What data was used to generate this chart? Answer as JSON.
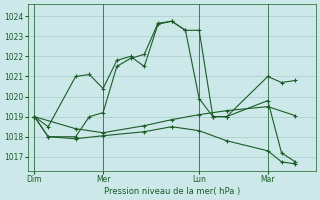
{
  "background_color": "#cde8e8",
  "grid_color": "#a8cccc",
  "line_color": "#1a5c28",
  "title": "Pression niveau de la mer( hPa )",
  "ylim": [
    1016.3,
    1024.6
  ],
  "yticks": [
    1017,
    1018,
    1019,
    1020,
    1021,
    1022,
    1023,
    1024
  ],
  "xtick_labels": [
    "Dim",
    "Mer",
    "Lun",
    "Mar"
  ],
  "xtick_positions": [
    0,
    5,
    12,
    17
  ],
  "vline_positions": [
    0,
    5,
    12,
    17
  ],
  "xlim": [
    -0.5,
    20.5
  ],
  "series": [
    {
      "x": [
        0,
        1,
        3,
        4,
        5,
        6,
        7,
        8,
        9,
        10,
        11,
        12,
        13,
        14,
        17,
        18,
        19
      ],
      "y": [
        1019.0,
        1018.5,
        1021.0,
        1021.1,
        1020.4,
        1021.8,
        1022.0,
        1021.5,
        1023.6,
        1023.75,
        1023.3,
        1023.3,
        1019.0,
        1019.0,
        1021.0,
        1020.7,
        1020.8
      ]
    },
    {
      "x": [
        0,
        1,
        3,
        4,
        5,
        6,
        7,
        8,
        9,
        10,
        11,
        12,
        13,
        14,
        17,
        18,
        19
      ],
      "y": [
        1019.0,
        1018.0,
        1018.0,
        1019.0,
        1019.2,
        1021.5,
        1021.9,
        1022.1,
        1023.65,
        1023.75,
        1023.3,
        1019.9,
        1019.0,
        1019.0,
        1019.8,
        1017.2,
        1016.75
      ]
    },
    {
      "x": [
        0,
        3,
        5,
        8,
        10,
        12,
        14,
        17,
        19
      ],
      "y": [
        1019.0,
        1018.4,
        1018.2,
        1018.55,
        1018.85,
        1019.1,
        1019.3,
        1019.5,
        1019.05
      ]
    },
    {
      "x": [
        0,
        1,
        3,
        5,
        8,
        10,
        12,
        14,
        17,
        18,
        19
      ],
      "y": [
        1019.0,
        1018.0,
        1017.9,
        1018.05,
        1018.25,
        1018.5,
        1018.3,
        1017.8,
        1017.3,
        1016.75,
        1016.65
      ]
    }
  ]
}
